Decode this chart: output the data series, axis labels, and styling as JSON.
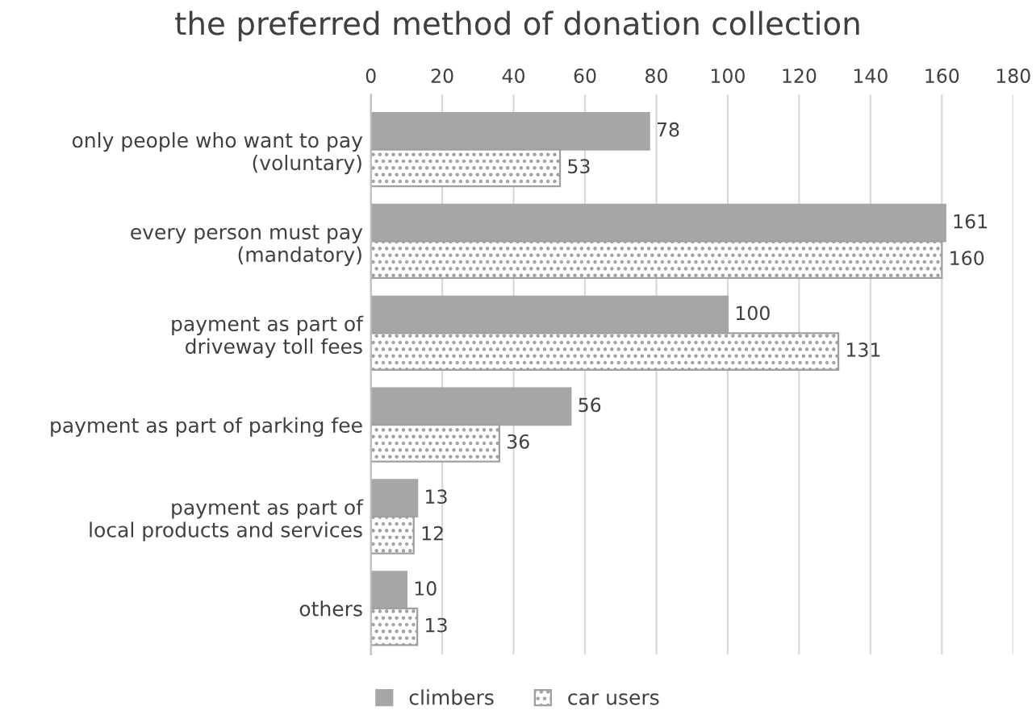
{
  "chart_data": {
    "type": "bar",
    "orientation": "horizontal",
    "title": "the preferred method of donation collection",
    "categories": [
      "only people who want to pay\n(voluntary)",
      "every person must pay\n(mandatory)",
      "payment as part of\ndriveway toll fees",
      "payment as part of parking fee",
      "payment as part of\nlocal products and services",
      "others"
    ],
    "series": [
      {
        "name": "climbers",
        "color": "#a6a6a6",
        "values": [
          78,
          161,
          100,
          56,
          13,
          10
        ]
      },
      {
        "name": "car users",
        "color": "#a0a0a0",
        "values": [
          53,
          160,
          131,
          36,
          12,
          13
        ]
      }
    ],
    "xlim": [
      0,
      180
    ],
    "xticks": [
      0,
      20,
      40,
      60,
      80,
      100,
      120,
      140,
      160,
      180
    ],
    "grid": "x",
    "legend": "bottom",
    "data_labels": true
  }
}
